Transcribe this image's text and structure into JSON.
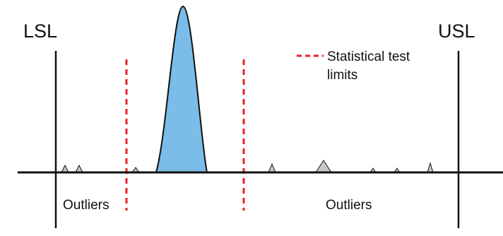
{
  "diagram": {
    "lsl_label": "LSL",
    "usl_label": "USL",
    "legend": {
      "line1": "Statistical test",
      "line2": "limits"
    },
    "outliers_left_label": "Outliers",
    "outliers_right_label": "Outliers"
  },
  "colors": {
    "distribution_fill": "#79bde8",
    "outlier_fill": "#c8c8c8",
    "test_limit_stroke": "#e8202a",
    "line_stroke": "#111111"
  }
}
